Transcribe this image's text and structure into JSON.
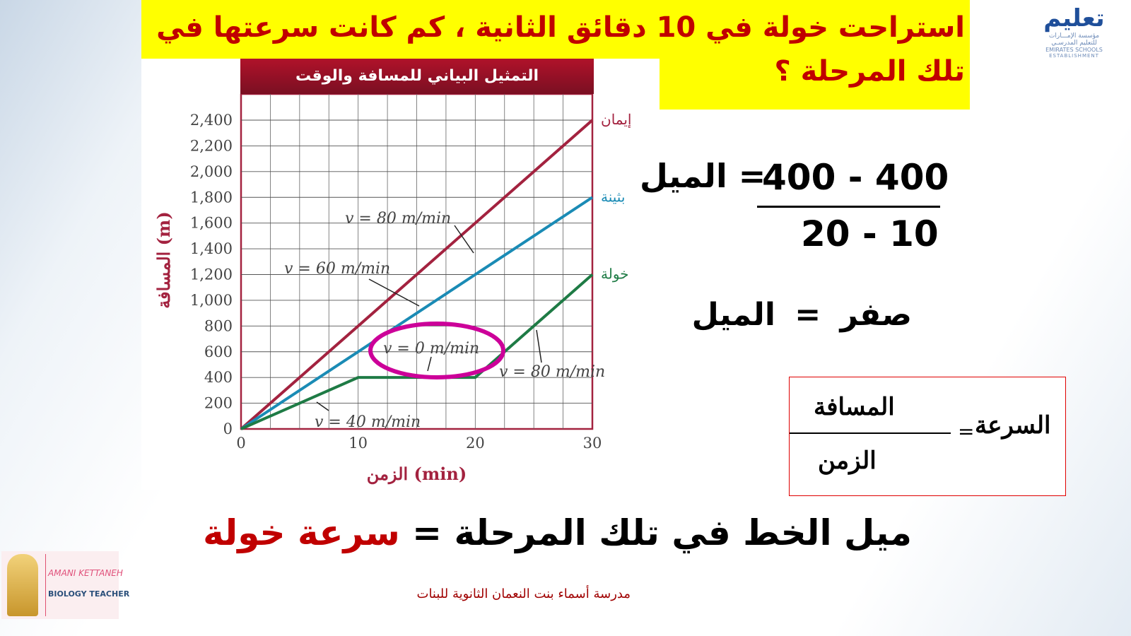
{
  "slide": {
    "question": "استراحت خولة في  10 دقائق الثانية ، كم كانت سرعتها في تلك المرحلة ؟",
    "slope_label": "الميل",
    "equals": "=",
    "numerator": "400 - 400",
    "denominator": "20 - 10",
    "result_value": "صفر",
    "definition": {
      "lhs": "السرعة",
      "numerator": "المسافة",
      "denominator": "الزمن"
    },
    "conclusion": {
      "part1": "ميل الخط في تلك المرحلة",
      "equals": "=",
      "part2": "سرعة خولة"
    },
    "school_name": "مدرسة أسماء بنت النعمان الثانوية للبنات",
    "logo_text": {
      "mark": "تعليم",
      "line1": "مؤسسة الإمـــارات",
      "line2": "للتعليم المدرسـي",
      "line3": "EMIRATES SCHOOLS",
      "line4": "ESTABLISHMENT"
    },
    "teacher": {
      "name": "AMANI KETTANEH",
      "role": "BIOLOGY TEACHER"
    },
    "colors": {
      "title": "#c00000",
      "highlight": "#ffff00",
      "ellipse": "#cc0099",
      "box_border": "#e00000"
    }
  },
  "chart_data": {
    "type": "line",
    "title": "التمثيل البياني للمسافة والوقت",
    "xlabel": "الزمن (min)",
    "ylabel": "المسافة (m)",
    "xlim": [
      0,
      30
    ],
    "ylim": [
      0,
      2400
    ],
    "xticks": [
      "0",
      "10",
      "20",
      "30"
    ],
    "yticks": [
      "0",
      "200",
      "400",
      "600",
      "800",
      "1,000",
      "1,200",
      "1,400",
      "1,600",
      "1,800",
      "2,000",
      "2,200",
      "2,400"
    ],
    "grid": true,
    "series": [
      {
        "name": "إيمان",
        "color": "#a3223f",
        "x": [
          0,
          30
        ],
        "y": [
          0,
          2400
        ]
      },
      {
        "name": "بثينة",
        "color": "#1a8bb5",
        "x": [
          0,
          30
        ],
        "y": [
          0,
          1800
        ]
      },
      {
        "name": "خولة",
        "color": "#1e7b45",
        "x": [
          0,
          10,
          20,
          30
        ],
        "y": [
          0,
          400,
          400,
          1200
        ]
      }
    ],
    "annotations": [
      "v = 80 m/min",
      "v = 60 m/min",
      "v = 0 m/min",
      "v = 80 m/min",
      "v = 40 m/min"
    ]
  }
}
